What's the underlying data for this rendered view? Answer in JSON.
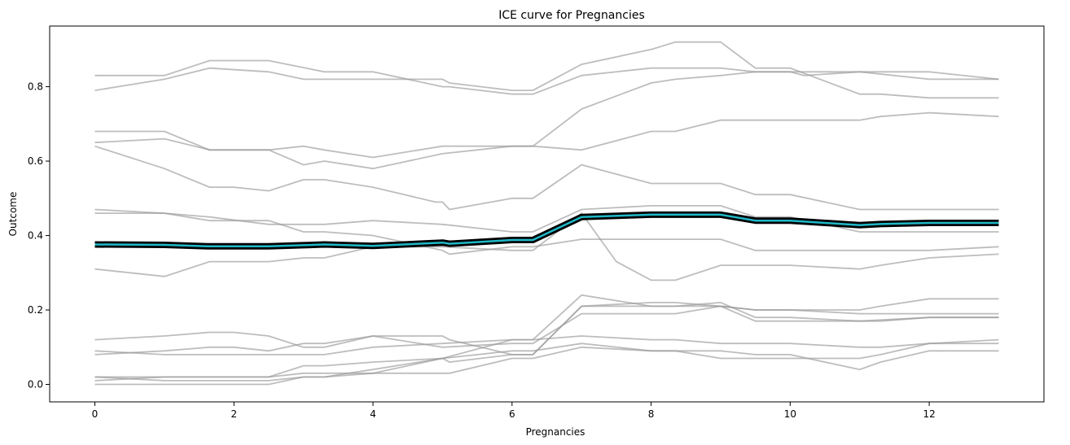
{
  "chart_data": {
    "type": "line",
    "title": "ICE curve for Pregnancies",
    "xlabel": "Pregnancies",
    "ylabel": "Outcome",
    "xlim": [
      -0.65,
      13.65
    ],
    "ylim": [
      -0.047,
      0.963
    ],
    "x_ticks": [
      0,
      2,
      4,
      6,
      8,
      10,
      12
    ],
    "y_ticks": [
      0.0,
      0.2,
      0.4,
      0.6,
      0.8
    ],
    "grid": false,
    "legend": "none",
    "colors": {
      "ice": "#9a9a9a",
      "pdp_outline": "#000000",
      "pdp_fill": "#1fb8c7"
    },
    "ice_series": [
      {
        "x": [
          0,
          1,
          1.65,
          2.5,
          3,
          3.3,
          4,
          5,
          5.1,
          6,
          6.3,
          7,
          8,
          8.35,
          9,
          9.5,
          10,
          11,
          11.3,
          12,
          13
        ],
        "values": [
          0.79,
          0.82,
          0.85,
          0.84,
          0.82,
          0.82,
          0.82,
          0.82,
          0.81,
          0.79,
          0.79,
          0.86,
          0.9,
          0.92,
          0.92,
          0.85,
          0.85,
          0.78,
          0.78,
          0.77,
          0.77
        ]
      },
      {
        "x": [
          0,
          1,
          1.65,
          2.5,
          3.3,
          4,
          5,
          5.1,
          6,
          6.3,
          7,
          8,
          8.35,
          9,
          9.5,
          10,
          10.2,
          11,
          11.3,
          12,
          13
        ],
        "values": [
          0.83,
          0.83,
          0.87,
          0.87,
          0.84,
          0.84,
          0.8,
          0.8,
          0.78,
          0.78,
          0.83,
          0.85,
          0.85,
          0.85,
          0.84,
          0.84,
          0.83,
          0.84,
          0.84,
          0.84,
          0.82
        ]
      },
      {
        "x": [
          0,
          1,
          1.65,
          2.5,
          3,
          3.3,
          4,
          5,
          6,
          6.3,
          7,
          8,
          8.35,
          9,
          9.5,
          10,
          11,
          12,
          13
        ],
        "values": [
          0.65,
          0.66,
          0.63,
          0.63,
          0.59,
          0.6,
          0.58,
          0.62,
          0.64,
          0.64,
          0.74,
          0.81,
          0.82,
          0.83,
          0.84,
          0.84,
          0.84,
          0.82,
          0.82
        ]
      },
      {
        "x": [
          0,
          1,
          1.65,
          2.5,
          3,
          3.3,
          4,
          5,
          6,
          6.3,
          7,
          8,
          8.35,
          9,
          9.5,
          10,
          11,
          11.3,
          12,
          13
        ],
        "values": [
          0.68,
          0.68,
          0.63,
          0.63,
          0.64,
          0.63,
          0.61,
          0.64,
          0.64,
          0.64,
          0.63,
          0.68,
          0.68,
          0.71,
          0.71,
          0.71,
          0.71,
          0.72,
          0.73,
          0.72
        ]
      },
      {
        "x": [
          0,
          1,
          1.65,
          2,
          2.5,
          3,
          3.3,
          4,
          4.9,
          5,
          5.1,
          6,
          6.3,
          7,
          8,
          8.35,
          9,
          9.5,
          10,
          11,
          11.3,
          12,
          13
        ],
        "values": [
          0.64,
          0.58,
          0.53,
          0.53,
          0.52,
          0.55,
          0.55,
          0.53,
          0.49,
          0.49,
          0.47,
          0.5,
          0.5,
          0.59,
          0.54,
          0.54,
          0.54,
          0.51,
          0.51,
          0.47,
          0.47,
          0.47,
          0.47
        ]
      },
      {
        "x": [
          0,
          1,
          1.65,
          2.5,
          3.3,
          4,
          5,
          6,
          6.3,
          7,
          8,
          8.35,
          9,
          9.5,
          10,
          11,
          11.3,
          12,
          13
        ],
        "values": [
          0.47,
          0.46,
          0.45,
          0.43,
          0.43,
          0.44,
          0.43,
          0.41,
          0.41,
          0.47,
          0.48,
          0.48,
          0.48,
          0.45,
          0.45,
          0.41,
          0.41,
          0.41,
          0.41
        ]
      },
      {
        "x": [
          0,
          1,
          1.65,
          2,
          2.5,
          3,
          3.3,
          4,
          5,
          5.1,
          6,
          6.3,
          7,
          8,
          9,
          9.5,
          10,
          11,
          12,
          13
        ],
        "values": [
          0.46,
          0.46,
          0.44,
          0.44,
          0.44,
          0.41,
          0.41,
          0.4,
          0.36,
          0.35,
          0.37,
          0.37,
          0.39,
          0.39,
          0.39,
          0.36,
          0.36,
          0.36,
          0.36,
          0.37
        ]
      },
      {
        "x": [
          0,
          1,
          1.65,
          2.5,
          3,
          3.3,
          4,
          5,
          6,
          6.3,
          7,
          7.5,
          8,
          8.35,
          9,
          9.5,
          10,
          11,
          11.3,
          12,
          13
        ],
        "values": [
          0.31,
          0.29,
          0.33,
          0.33,
          0.34,
          0.34,
          0.37,
          0.37,
          0.36,
          0.36,
          0.46,
          0.33,
          0.28,
          0.28,
          0.32,
          0.32,
          0.32,
          0.31,
          0.32,
          0.34,
          0.35
        ]
      },
      {
        "x": [
          0,
          1,
          1.65,
          2,
          2.5,
          3,
          3.3,
          4,
          5,
          5.1,
          6,
          6.3,
          7,
          8,
          8.35,
          9,
          9.5,
          10,
          11,
          11.3,
          12,
          13
        ],
        "values": [
          0.12,
          0.13,
          0.14,
          0.14,
          0.13,
          0.1,
          0.1,
          0.13,
          0.13,
          0.12,
          0.08,
          0.08,
          0.21,
          0.22,
          0.22,
          0.21,
          0.2,
          0.2,
          0.2,
          0.21,
          0.23,
          0.23
        ]
      },
      {
        "x": [
          0,
          1,
          1.65,
          2,
          2.5,
          3,
          3.3,
          4,
          5,
          6,
          6.3,
          7,
          8,
          8.35,
          9,
          9.5,
          10,
          11,
          12,
          13
        ],
        "values": [
          0.09,
          0.08,
          0.08,
          0.08,
          0.08,
          0.08,
          0.08,
          0.1,
          0.11,
          0.12,
          0.12,
          0.24,
          0.21,
          0.21,
          0.22,
          0.18,
          0.18,
          0.17,
          0.18,
          0.18
        ]
      },
      {
        "x": [
          0,
          1,
          1.65,
          2,
          2.5,
          3,
          3.3,
          4,
          5,
          6,
          6.3,
          7,
          8,
          8.35,
          9,
          9.5,
          10,
          11,
          11.3,
          12,
          13
        ],
        "values": [
          0.08,
          0.09,
          0.1,
          0.1,
          0.09,
          0.11,
          0.11,
          0.13,
          0.1,
          0.11,
          0.11,
          0.19,
          0.19,
          0.19,
          0.21,
          0.17,
          0.17,
          0.17,
          0.17,
          0.18,
          0.18
        ]
      },
      {
        "x": [
          0,
          1,
          1.65,
          2.5,
          3,
          3.3,
          4,
          5,
          5.1,
          6,
          6.3,
          7,
          8,
          8.35,
          9,
          9.5,
          10,
          11,
          11.3,
          12,
          13
        ],
        "values": [
          0.02,
          0.02,
          0.02,
          0.02,
          0.03,
          0.03,
          0.03,
          0.07,
          0.06,
          0.08,
          0.08,
          0.21,
          0.21,
          0.21,
          0.21,
          0.2,
          0.2,
          0.19,
          0.19,
          0.19,
          0.19
        ]
      },
      {
        "x": [
          0,
          1,
          1.65,
          2.5,
          3,
          3.3,
          4,
          5,
          6,
          6.3,
          7,
          8,
          8.35,
          9,
          9.5,
          10,
          11,
          11.3,
          12,
          13
        ],
        "values": [
          0.01,
          0.02,
          0.02,
          0.02,
          0.05,
          0.05,
          0.06,
          0.07,
          0.12,
          0.12,
          0.13,
          0.12,
          0.12,
          0.11,
          0.11,
          0.11,
          0.1,
          0.1,
          0.11,
          0.11
        ]
      },
      {
        "x": [
          0,
          1,
          1.65,
          2.5,
          3,
          3.3,
          4,
          5,
          6,
          6.3,
          7,
          8,
          8.35,
          9,
          9.5,
          10,
          11,
          11.3,
          12,
          13
        ],
        "values": [
          0.02,
          0.01,
          0.01,
          0.01,
          0.02,
          0.02,
          0.04,
          0.07,
          0.09,
          0.09,
          0.11,
          0.09,
          0.09,
          0.09,
          0.08,
          0.08,
          0.04,
          0.06,
          0.09,
          0.09
        ]
      },
      {
        "x": [
          0,
          1,
          1.65,
          2.5,
          3,
          3.3,
          4,
          5.1,
          6,
          6.3,
          7,
          8,
          8.35,
          9,
          9.5,
          10,
          11,
          11.3,
          12,
          13
        ],
        "values": [
          0.0,
          0.0,
          0.0,
          0.0,
          0.02,
          0.02,
          0.03,
          0.03,
          0.07,
          0.07,
          0.1,
          0.09,
          0.09,
          0.07,
          0.07,
          0.07,
          0.07,
          0.08,
          0.11,
          0.12
        ]
      }
    ],
    "pdp": {
      "x": [
        0,
        1,
        1.65,
        2,
        2.5,
        3,
        3.3,
        4,
        5,
        5.1,
        6,
        6.3,
        7,
        8,
        8.35,
        9,
        9.5,
        10,
        11,
        11.3,
        12,
        13
      ],
      "values": [
        0.376,
        0.375,
        0.371,
        0.371,
        0.371,
        0.374,
        0.376,
        0.372,
        0.381,
        0.378,
        0.388,
        0.388,
        0.45,
        0.456,
        0.456,
        0.456,
        0.44,
        0.44,
        0.428,
        0.431,
        0.434,
        0.434
      ]
    }
  }
}
